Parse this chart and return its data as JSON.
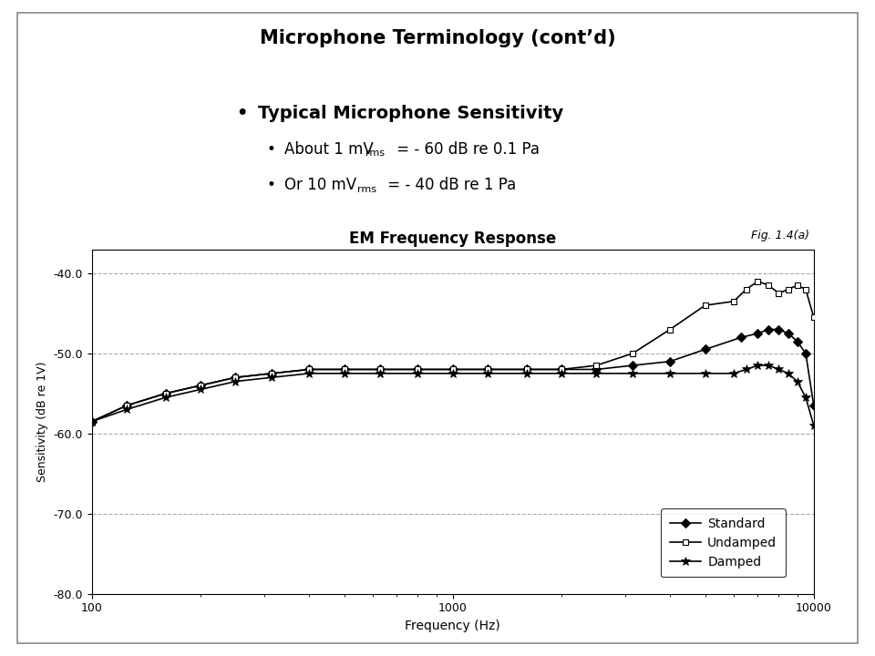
{
  "title": "Microphone Terminology (cont’d)",
  "plot_title": "EM Frequency Response",
  "fig_label": "Fig. 1.4(a)",
  "ylabel": "Sensitivity (dB re 1V)",
  "xlabel": "Frequency (Hz)",
  "ylim": [
    -80,
    -37
  ],
  "xlim": [
    100,
    10000
  ],
  "yticks": [
    -80.0,
    -70.0,
    -60.0,
    -50.0,
    -40.0
  ],
  "bg_color": "#ffffff",
  "grid_color": "#aaaaaa",
  "standard_freq": [
    100,
    125,
    160,
    200,
    250,
    315,
    400,
    500,
    630,
    800,
    1000,
    1250,
    1600,
    2000,
    2500,
    3150,
    4000,
    5000,
    6300,
    7000,
    7500,
    8000,
    8500,
    9000,
    9500,
    10000
  ],
  "standard_db": [
    -58.5,
    -56.5,
    -55.0,
    -54.0,
    -53.0,
    -52.5,
    -52.0,
    -52.0,
    -52.0,
    -52.0,
    -52.0,
    -52.0,
    -52.0,
    -52.0,
    -52.0,
    -51.5,
    -51.0,
    -49.5,
    -48.0,
    -47.5,
    -47.0,
    -47.0,
    -47.5,
    -48.5,
    -50.0,
    -56.5
  ],
  "undamped_freq": [
    100,
    125,
    160,
    200,
    250,
    315,
    400,
    500,
    630,
    800,
    1000,
    1250,
    1600,
    2000,
    2500,
    3150,
    4000,
    5000,
    6000,
    6500,
    7000,
    7500,
    8000,
    8500,
    9000,
    9500,
    10000
  ],
  "undamped_db": [
    -58.5,
    -56.5,
    -55.0,
    -54.0,
    -53.0,
    -52.5,
    -52.0,
    -52.0,
    -52.0,
    -52.0,
    -52.0,
    -52.0,
    -52.0,
    -52.0,
    -51.5,
    -50.0,
    -47.0,
    -44.0,
    -43.5,
    -42.0,
    -41.0,
    -41.5,
    -42.5,
    -42.0,
    -41.5,
    -42.0,
    -45.5
  ],
  "damped_freq": [
    100,
    125,
    160,
    200,
    250,
    315,
    400,
    500,
    630,
    800,
    1000,
    1250,
    1600,
    2000,
    2500,
    3150,
    4000,
    5000,
    6000,
    6500,
    7000,
    7500,
    8000,
    8500,
    9000,
    9500,
    10000
  ],
  "damped_db": [
    -58.5,
    -57.0,
    -55.5,
    -54.5,
    -53.5,
    -53.0,
    -52.5,
    -52.5,
    -52.5,
    -52.5,
    -52.5,
    -52.5,
    -52.5,
    -52.5,
    -52.5,
    -52.5,
    -52.5,
    -52.5,
    -52.5,
    -52.0,
    -51.5,
    -51.5,
    -52.0,
    -52.5,
    -53.5,
    -55.5,
    -59.0
  ]
}
